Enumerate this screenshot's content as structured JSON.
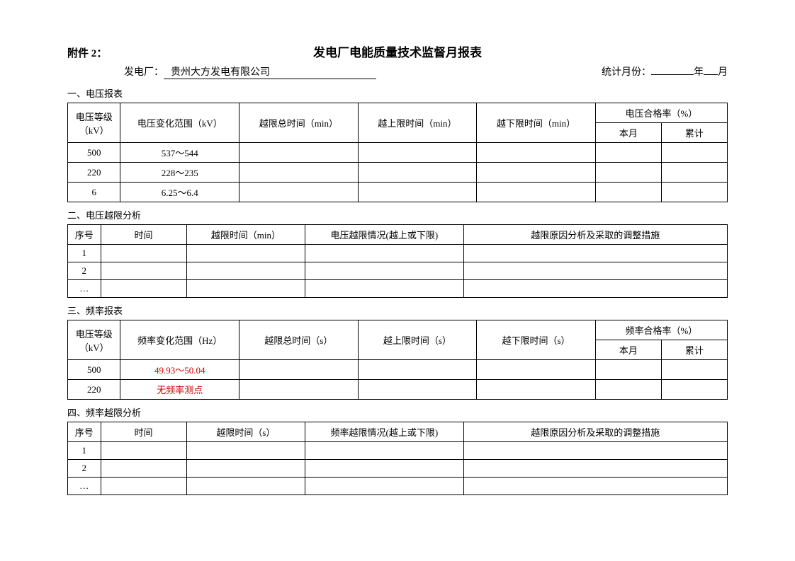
{
  "header": {
    "attachment": "附件 2：",
    "title": "发电厂电能质量技术监督月报表",
    "plant_label": "发电厂：",
    "plant_value": "贵州大方发电有限公司",
    "month_label": "统计月份：",
    "year_value": "",
    "year_unit": "年",
    "month_value": "",
    "month_unit": "月"
  },
  "section1": {
    "label": "一、电压报表",
    "headers": {
      "h1": "电压等级（kV）",
      "h2": "电压变化范围（kV）",
      "h3": "越限总时间（min）",
      "h4": "越上限时间（min）",
      "h5": "越下限时间（min）",
      "h6": "电压合格率（%）",
      "h6a": "本月",
      "h6b": "累计"
    },
    "rows": [
      {
        "level": "500",
        "range": "537～544",
        "total": "",
        "over": "",
        "under": "",
        "month": "",
        "cum": ""
      },
      {
        "level": "220",
        "range": "228～235",
        "total": "",
        "over": "",
        "under": "",
        "month": "",
        "cum": ""
      },
      {
        "level": "6",
        "range": "6.25～6.4",
        "total": "",
        "over": "",
        "under": "",
        "month": "",
        "cum": ""
      }
    ]
  },
  "section2": {
    "label": "二、电压越限分析",
    "headers": {
      "h1": "序号",
      "h2": "时间",
      "h3": "越限时间（min）",
      "h4": "电压越限情况(越上或下限)",
      "h5": "越限原因分析及采取的调整措施"
    },
    "rows": [
      {
        "no": "1",
        "time": "",
        "dur": "",
        "cond": "",
        "cause": ""
      },
      {
        "no": "2",
        "time": "",
        "dur": "",
        "cond": "",
        "cause": ""
      },
      {
        "no": "…",
        "time": "",
        "dur": "",
        "cond": "",
        "cause": ""
      }
    ]
  },
  "section3": {
    "label": "三、频率报表",
    "headers": {
      "h1": "电压等级（kV）",
      "h2": "频率变化范围（Hz）",
      "h3": "越限总时间（s）",
      "h4": "越上限时间（s）",
      "h5": "越下限时间（s）",
      "h6": "频率合格率（%）",
      "h6a": "本月",
      "h6b": "累计"
    },
    "rows": [
      {
        "level": "500",
        "range": "49.93～50.04",
        "range_red": true,
        "total": "",
        "over": "",
        "under": "",
        "month": "",
        "cum": ""
      },
      {
        "level": "220",
        "range": "无频率测点",
        "range_red": true,
        "total": "",
        "over": "",
        "under": "",
        "month": "",
        "cum": ""
      }
    ]
  },
  "section4": {
    "label": "四、频率越限分析",
    "headers": {
      "h1": "序号",
      "h2": "时间",
      "h3": "越限时间（s）",
      "h4": "频率越限情况(越上或下限)",
      "h5": "越限原因分析及采取的调整措施"
    },
    "rows": [
      {
        "no": "1",
        "time": "",
        "dur": "",
        "cond": "",
        "cause": ""
      },
      {
        "no": "2",
        "time": "",
        "dur": "",
        "cond": "",
        "cause": ""
      },
      {
        "no": "…",
        "time": "",
        "dur": "",
        "cond": "",
        "cause": ""
      }
    ]
  },
  "layout": {
    "table1_colwidths_pct": [
      8,
      18,
      18,
      18,
      18,
      10,
      10
    ],
    "table2_colwidths_pct": [
      5,
      13,
      18,
      24,
      40
    ],
    "table3_colwidths_pct": [
      8,
      18,
      18,
      18,
      18,
      10,
      10
    ],
    "table4_colwidths_pct": [
      5,
      13,
      18,
      24,
      40
    ]
  }
}
